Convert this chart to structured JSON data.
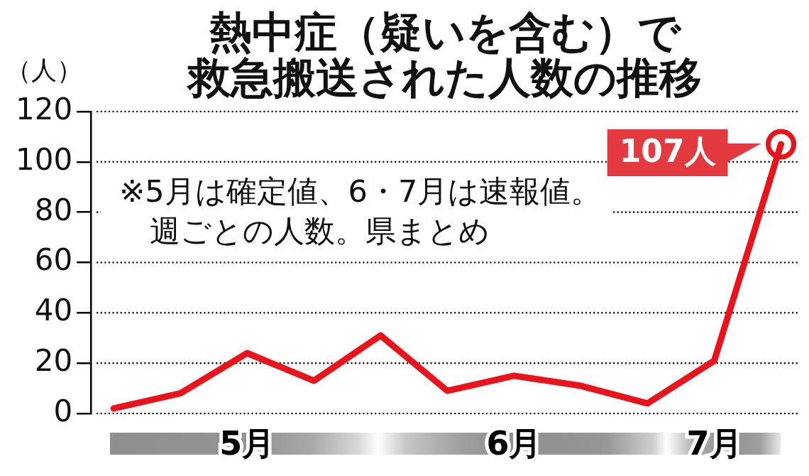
{
  "chart_data": {
    "type": "line",
    "title": "熱中症（疑いを含む）で救急搬送された人数の推移",
    "ylabel": "（人）",
    "annotations": [
      "※5月は確定値、6・7月は速報値。",
      "週ごとの人数。県まとめ"
    ],
    "categories": [
      null,
      null,
      "5月",
      null,
      null,
      null,
      "6月",
      null,
      null,
      "7月",
      null
    ],
    "values": [
      2,
      8,
      24,
      13,
      31,
      9,
      15,
      11,
      4,
      21,
      107
    ],
    "value_labels": [
      null,
      null,
      null,
      null,
      null,
      null,
      null,
      null,
      null,
      null,
      "107人"
    ],
    "color": "#e8131b",
    "ylim": [
      0,
      120
    ],
    "yticks": [
      0,
      20,
      40,
      60,
      80,
      100,
      120
    ],
    "grid": "y"
  }
}
